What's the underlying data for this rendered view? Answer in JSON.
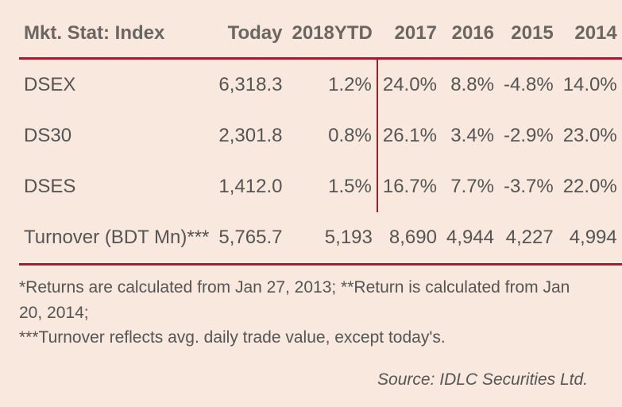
{
  "table": {
    "type": "table",
    "background_color": "#f8e8dd",
    "rule_color": "#a01f2c",
    "text_color": "#555555",
    "header_color": "#6b6662",
    "header_fontsize": 24,
    "cell_fontsize": 24,
    "columns": [
      "Mkt. Stat: Index",
      "Today",
      "2018YTD",
      "2017",
      "2016",
      "2015",
      "2014"
    ],
    "rows": [
      {
        "label": "DSEX",
        "values": [
          "6,318.3",
          "1.2%",
          "24.0%",
          "8.8%",
          "-4.8%",
          "14.0%"
        ]
      },
      {
        "label": "DS30",
        "values": [
          "2,301.8",
          "0.8%",
          "26.1%",
          "3.4%",
          "-2.9%",
          "23.0%"
        ]
      },
      {
        "label": "DSES",
        "values": [
          "1,412.0",
          "1.5%",
          "16.7%",
          "7.7%",
          "-3.7%",
          "22.0%"
        ]
      },
      {
        "label": "Turnover (BDT Mn)***",
        "values": [
          "5,765.7",
          "5,193",
          "8,690",
          "4,944",
          "4,227",
          "4,994"
        ]
      }
    ],
    "vline_after_col_index": 2
  },
  "footnotes": {
    "line1": "*Returns are calculated from Jan 27, 2013; **Return is calculated from Jan 20, 2014;",
    "line2": "***Turnover reflects avg. daily trade value, except today's."
  },
  "source": "Source: IDLC Securities Ltd."
}
